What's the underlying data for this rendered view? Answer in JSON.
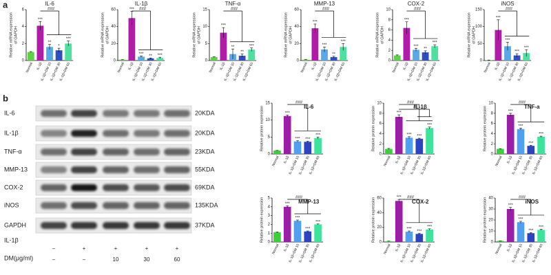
{
  "panel_labels": [
    "a",
    "b"
  ],
  "blot": {
    "proteins": [
      "IL-6",
      "IL-1β",
      "TNF-α",
      "MMP-13",
      "COX-2",
      "iNOS",
      "GAPDH"
    ],
    "sizes": [
      "20KDA",
      "20KDA",
      "23KDA",
      "55KDA",
      "69KDA",
      "135KDA",
      "37KDA"
    ],
    "treatments": [
      {
        "name": "IL-1β",
        "levels": [
          "–",
          "+",
          "+",
          "+",
          "+"
        ]
      },
      {
        "name": "DM(μg/ml)",
        "levels": [
          "–",
          "–",
          "10",
          "30",
          "60"
        ]
      }
    ]
  },
  "chart_data": [
    {
      "type": "bar",
      "title": "IL-6",
      "ylabel": [
        "Relative mRNA expression",
        "of GAPDH"
      ],
      "categories": [
        "Normal",
        "IL-1β",
        "IL-1β+DM 10",
        "IL-1β+DM 30",
        "IL-1β+DM 60"
      ],
      "values": [
        1,
        4.1,
        1.6,
        1.2,
        2.0
      ],
      "errors": [
        0.05,
        0.5,
        0.3,
        0.25,
        0.3
      ],
      "stars": [
        null,
        "***",
        "**",
        "*",
        "***"
      ],
      "brackets": [
        "###"
      ],
      "colors": [
        "#62cf4a",
        "#b01ca8",
        "#5aa9e6",
        "#2f4fbf",
        "#4fe0a0"
      ],
      "ylim": [
        0,
        6
      ],
      "yticks": [
        0,
        2,
        4,
        6
      ]
    },
    {
      "type": "bar",
      "title": "IL-1β",
      "ylabel": [
        "Relative mRNA expression",
        "of GAPDH"
      ],
      "categories": [
        "Normal",
        "IL-1β",
        "IL-1β+DM 10",
        "IL-1β+DM 30",
        "IL-1β+DM 60"
      ],
      "values": [
        1,
        50,
        4.5,
        2.5,
        3
      ],
      "errors": [
        0.1,
        8,
        0.8,
        0.5,
        0.9
      ],
      "stars": [
        null,
        "***",
        "***",
        "**",
        "***"
      ],
      "brackets": [
        "###"
      ],
      "colors": [
        "#62cf4a",
        "#b01ca8",
        "#5aa9e6",
        "#2f4fbf",
        "#4fe0a0"
      ],
      "ylim": [
        0,
        60
      ],
      "yticks": [
        0,
        20,
        40,
        60
      ]
    },
    {
      "type": "bar",
      "title": "TNF-α",
      "ylabel": [
        "Relative mRNA expression",
        "of GAPDH"
      ],
      "categories": [
        "Normal",
        "IL-1β",
        "IL-1β+DM 10",
        "IL-1β+DM 30",
        "IL-1β+DM 60"
      ],
      "values": [
        1,
        8.2,
        1.9,
        1.4,
        3.2
      ],
      "errors": [
        0.1,
        1.5,
        1.5,
        0.5,
        0.5
      ],
      "stars": [
        null,
        "***",
        "**",
        "**",
        "***"
      ],
      "brackets": [
        "###"
      ],
      "colors": [
        "#62cf4a",
        "#b01ca8",
        "#5aa9e6",
        "#2f4fbf",
        "#4fe0a0"
      ],
      "ylim": [
        0,
        15
      ],
      "yticks": [
        0,
        5,
        10,
        15
      ]
    },
    {
      "type": "bar",
      "title": "MMP-13",
      "ylabel": [
        "Relative mRNA expression",
        "of GAPDH"
      ],
      "categories": [
        "Normal",
        "IL-1β",
        "IL-1β+DM 10",
        "IL-1β+DM 30",
        "IL-1β+DM 60"
      ],
      "values": [
        1,
        38,
        13,
        4,
        16
      ],
      "errors": [
        0.2,
        5,
        3,
        1,
        4
      ],
      "stars": [
        null,
        "***",
        "***",
        "**",
        "***"
      ],
      "brackets": [
        "###"
      ],
      "colors": [
        "#62cf4a",
        "#b01ca8",
        "#5aa9e6",
        "#2f4fbf",
        "#4fe0a0"
      ],
      "ylim": [
        0,
        60
      ],
      "yticks": [
        0,
        20,
        40,
        60
      ]
    },
    {
      "type": "bar",
      "title": "COX-2",
      "ylabel": [
        "Relative mRNA expression",
        "of GAPDH"
      ],
      "categories": [
        "Normal",
        "IL-1β",
        "IL-1β+DM 10",
        "IL-1β+DM 30",
        "IL-1β+DM 60"
      ],
      "values": [
        1,
        6.4,
        2.1,
        1.6,
        2.8
      ],
      "errors": [
        0.1,
        1.2,
        0.3,
        0.3,
        0.3
      ],
      "stars": [
        null,
        "***",
        "***",
        "**",
        "***"
      ],
      "brackets": [
        "###"
      ],
      "colors": [
        "#62cf4a",
        "#b01ca8",
        "#5aa9e6",
        "#2f4fbf",
        "#4fe0a0"
      ],
      "ylim": [
        0,
        10
      ],
      "yticks": [
        0,
        2,
        4,
        6,
        8,
        10
      ]
    },
    {
      "type": "bar",
      "title": "iNOS",
      "ylabel": [
        "Relative mRNA expression",
        "of GAPDH"
      ],
      "categories": [
        "Normal",
        "IL-1β",
        "IL-1β+DM 10",
        "IL-1β+DM 30",
        "IL-1β+DM 60"
      ],
      "values": [
        1,
        90,
        42,
        15,
        22
      ],
      "errors": [
        0.5,
        30,
        12,
        5,
        10
      ],
      "stars": [
        null,
        "***",
        "***",
        "***",
        "***"
      ],
      "brackets": [
        "###"
      ],
      "colors": [
        "#62cf4a",
        "#b01ca8",
        "#5aa9e6",
        "#2f4fbf",
        "#4fe0a0"
      ],
      "ylim": [
        0,
        150
      ],
      "yticks": [
        0,
        50,
        100,
        150
      ]
    },
    {
      "type": "bar",
      "title": "IL-6",
      "ylabel": [
        "Relative protein expression"
      ],
      "categories": [
        "Normal",
        "IL-1β",
        "IL-1β+DM 10",
        "IL-1β+DM 30",
        "IL-1β+DM 60"
      ],
      "values": [
        1,
        11.2,
        3.7,
        3.6,
        4.7
      ],
      "errors": [
        0.05,
        0.3,
        0.2,
        0.2,
        0.3
      ],
      "stars": [
        null,
        "***",
        "***",
        "***",
        "***"
      ],
      "brackets": [
        "###"
      ],
      "colors": [
        "#3ccf3c",
        "#9b1fa6",
        "#4fa0f0",
        "#2b45c0",
        "#3de39b"
      ],
      "ylim": [
        0,
        15
      ],
      "yticks": [
        0,
        5,
        10,
        15
      ]
    },
    {
      "type": "bar",
      "title": "IL-1β",
      "ylabel": [
        "Relative protein expression"
      ],
      "categories": [
        "Normal",
        "IL-1β",
        "IL-1β+DM 10",
        "IL-1β+DM 30",
        "IL-1β+DM 60"
      ],
      "values": [
        1,
        7.3,
        3.2,
        3.0,
        5.1
      ],
      "errors": [
        0.1,
        0.4,
        0.2,
        0.1,
        0.2
      ],
      "stars": [
        null,
        "***",
        "***",
        "***",
        "***"
      ],
      "brackets": [
        "###",
        "##"
      ],
      "colors": [
        "#3ccf3c",
        "#9b1fa6",
        "#4fa0f0",
        "#2b45c0",
        "#3de39b"
      ],
      "ylim": [
        0,
        10
      ],
      "yticks": [
        0,
        2,
        4,
        6,
        8,
        10
      ]
    },
    {
      "type": "bar",
      "title": "TNF-a",
      "ylabel": [
        "Relative protein expression"
      ],
      "categories": [
        "Normal",
        "IL-1β",
        "IL-1β+DM 10",
        "IL-1β+DM 30",
        "IL-1β+DM 60"
      ],
      "values": [
        1,
        7.7,
        4.9,
        1.6,
        3.4
      ],
      "errors": [
        0.05,
        0.3,
        0.2,
        0.1,
        0.1
      ],
      "stars": [
        null,
        "***",
        "***",
        "***",
        "***"
      ],
      "brackets": [
        "###"
      ],
      "colors": [
        "#3ccf3c",
        "#9b1fa6",
        "#4fa0f0",
        "#2b45c0",
        "#3de39b"
      ],
      "ylim": [
        0,
        10
      ],
      "yticks": [
        0,
        2,
        4,
        6,
        8,
        10
      ]
    },
    {
      "type": "bar",
      "title": "MMP-13",
      "ylabel": [
        "Relative protein expression"
      ],
      "categories": [
        "Normal",
        "IL-1β",
        "IL-1β+DM 10",
        "IL-1β+DM 30",
        "IL-1β+DM 60"
      ],
      "values": [
        1.1,
        4.0,
        2.4,
        1.2,
        2.0
      ],
      "errors": [
        0.05,
        0.1,
        0.1,
        0.05,
        0.05
      ],
      "stars": [
        null,
        "***",
        "***",
        "***",
        "***"
      ],
      "brackets": [
        "###"
      ],
      "colors": [
        "#3ccf3c",
        "#9b1fa6",
        "#4fa0f0",
        "#2b45c0",
        "#3de39b"
      ],
      "ylim": [
        0,
        5
      ],
      "yticks": [
        0,
        1,
        2,
        3,
        4,
        5
      ]
    },
    {
      "type": "bar",
      "title": "COX-2",
      "ylabel": [
        "Relative protein expression"
      ],
      "categories": [
        "Normal",
        "IL-1β",
        "IL-1β+DM 10",
        "IL-1β+DM 30",
        "IL-1β+DM 60"
      ],
      "values": [
        1,
        56,
        14,
        11,
        17
      ],
      "errors": [
        0.2,
        2,
        1,
        1,
        1
      ],
      "stars": [
        null,
        "***",
        "***",
        "***",
        "***"
      ],
      "brackets": [
        "###"
      ],
      "colors": [
        "#3ccf3c",
        "#9b1fa6",
        "#4fa0f0",
        "#2b45c0",
        "#3de39b"
      ],
      "ylim": [
        0,
        60
      ],
      "yticks": [
        0,
        20,
        40,
        60
      ]
    },
    {
      "type": "bar",
      "title": "iNOS",
      "ylabel": [
        "Relative protein expression"
      ],
      "categories": [
        "Normal",
        "IL-1β",
        "IL-1β+DM 10",
        "IL-1β+DM 30",
        "IL-1β+DM 60"
      ],
      "values": [
        1,
        30,
        18,
        8,
        11
      ],
      "errors": [
        0.1,
        1.5,
        0.8,
        0.5,
        0.5
      ],
      "stars": [
        null,
        "***",
        "***",
        "***",
        "***"
      ],
      "brackets": [
        "###"
      ],
      "colors": [
        "#3ccf3c",
        "#9b1fa6",
        "#4fa0f0",
        "#2b45c0",
        "#3de39b"
      ],
      "ylim": [
        0,
        40
      ],
      "yticks": [
        0,
        10,
        20,
        30,
        40
      ]
    }
  ]
}
